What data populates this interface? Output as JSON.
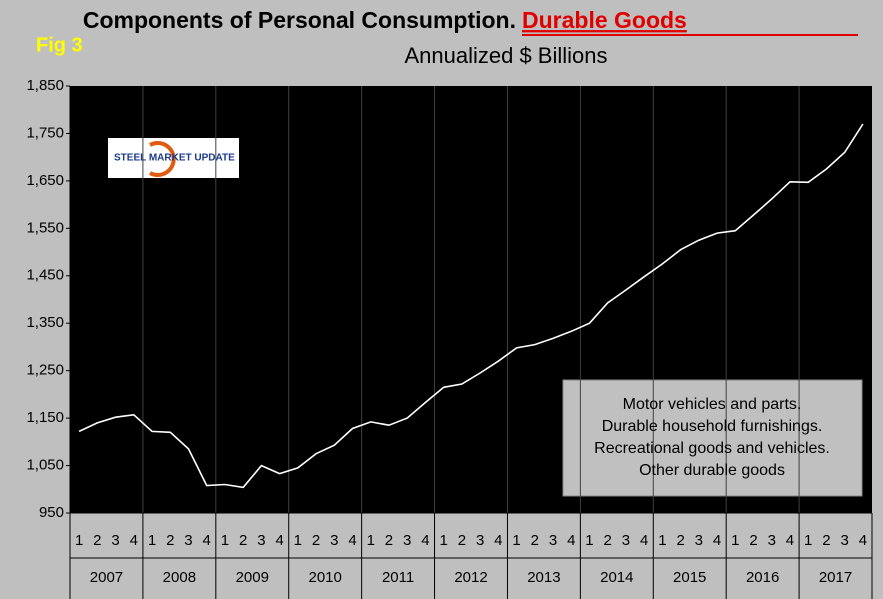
{
  "chart_data": {
    "type": "line",
    "title": "Components of Personal Consumption.",
    "title_highlight": "Durable Goods",
    "subtitle": "Annualized $ Billions",
    "figure_label": "Fig 3",
    "logo": "STEEL MARKET UPDATE",
    "annotation": [
      "Motor vehicles and parts.",
      "Durable household furnishings.",
      "Recreational goods and vehicles.",
      "Other durable goods"
    ],
    "categories": [
      "1",
      "2",
      "3",
      "4",
      "1",
      "2",
      "3",
      "4",
      "1",
      "2",
      "3",
      "4",
      "1",
      "2",
      "3",
      "4",
      "1",
      "2",
      "3",
      "4",
      "1",
      "2",
      "3",
      "4",
      "1",
      "2",
      "3",
      "4",
      "1",
      "2",
      "3",
      "4",
      "1",
      "2",
      "3",
      "4",
      "1",
      "2",
      "3",
      "4",
      "1",
      "2",
      "3",
      "4"
    ],
    "years": [
      "2007",
      "2008",
      "2009",
      "2010",
      "2011",
      "2012",
      "2013",
      "2014",
      "2015",
      "2016",
      "2017"
    ],
    "series": [
      {
        "color": "#ffffff",
        "values": [
          1122,
          1140,
          1152,
          1157,
          1122,
          1120,
          1085,
          1008,
          1010,
          1004,
          1050,
          1033,
          1045,
          1075,
          1093,
          1128,
          1142,
          1135,
          1150,
          1183,
          1215,
          1222,
          1245,
          1270,
          1298,
          1305,
          1318,
          1333,
          1350,
          1393,
          1420,
          1448,
          1475,
          1505,
          1525,
          1540,
          1545,
          1578,
          1612,
          1648,
          1647,
          1675,
          1710,
          1770
        ]
      }
    ],
    "ylim": [
      950,
      1850
    ],
    "yticks": [
      950,
      {
        "value": 1050,
        "label": "1,050"
      },
      {
        "value": 1150,
        "label": "1,150"
      },
      {
        "value": 1250,
        "label": "1,250"
      },
      {
        "value": 1350,
        "label": "1,350"
      },
      {
        "value": 1450,
        "label": "1,450"
      },
      {
        "value": 1550,
        "label": "1,550"
      },
      {
        "value": 1650,
        "label": "1,650"
      },
      {
        "value": 1750,
        "label": "1,750"
      },
      {
        "value": 1850,
        "label": "1,850"
      }
    ]
  }
}
